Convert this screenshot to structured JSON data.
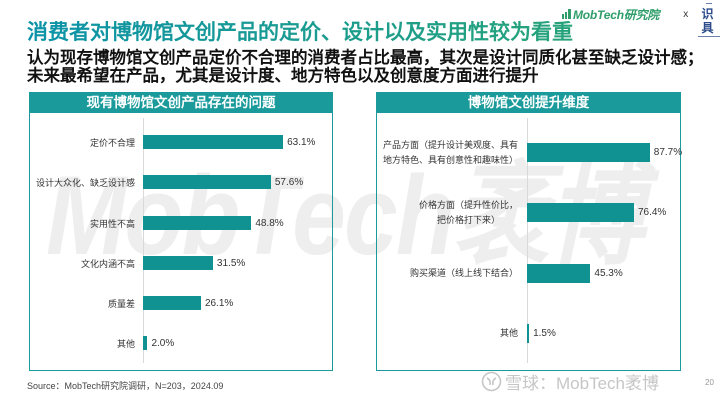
{
  "header": {
    "title": "消费者对博物馆文创产品的定价、设计以及实用性较为看重",
    "subtitle_lines": [
      "认为现存博物馆文创产品定价不合理的消费者占比最高，其次是设计同质化甚至缺乏设计感；",
      "未来最希望在产品，尤其是设计度、地方特色以及创意度方面进行提升"
    ]
  },
  "logo": {
    "brand": "MobTech研究院",
    "separator": "x",
    "partner": "识具"
  },
  "colors": {
    "accent": "#1b9a9c",
    "bar": "#0f9291",
    "title_gradient_start": "#0c93a8",
    "title_gradient_end": "#27a37a",
    "watermark": "#eeeeee"
  },
  "background_watermark": "MobTech袤博",
  "panels": [
    {
      "title": "现有博物馆文创产品存在的问题"
    },
    {
      "title": "博物馆文创提升维度"
    }
  ],
  "chart_data": [
    {
      "type": "bar",
      "orientation": "horizontal",
      "title": "现有博物馆文创产品存在的问题",
      "categories": [
        "定价不合理",
        "设计大众化、缺乏设计感",
        "实用性不高",
        "文化内涵不高",
        "质量差",
        "其他"
      ],
      "values": [
        63.1,
        57.6,
        48.8,
        31.5,
        26.1,
        2.0
      ],
      "value_labels": [
        "63.1%",
        "57.6%",
        "48.8%",
        "31.5%",
        "26.1%",
        "2.0%"
      ],
      "unit": "%",
      "xlabel": "",
      "ylabel": "",
      "grid": false,
      "legend": null
    },
    {
      "type": "bar",
      "orientation": "horizontal",
      "title": "博物馆文创提升维度",
      "categories": [
        "产品方面（提升设计美观度、具有地方特色、具有创意性和趣味性）",
        "价格方面（提升性价比，把价格打下来）",
        "购买渠道（线上线下结合）",
        "其他"
      ],
      "label_lines": [
        [
          "产品方面（提升设计美观度、具有",
          "地方特色、具有创意性和趣味性）"
        ],
        [
          "价格方面（提升性价比，",
          "把价格打下来）"
        ],
        [
          "购买渠道（线上线下结合）"
        ],
        [
          "其他"
        ]
      ],
      "values": [
        87.7,
        76.4,
        45.3,
        1.5
      ],
      "value_labels": [
        "87.7%",
        "76.4%",
        "45.3%",
        "1.5%"
      ],
      "unit": "%",
      "xlabel": "",
      "ylabel": "",
      "grid": false,
      "legend": null
    }
  ],
  "footer": {
    "source": "Source：MobTech研究院调研，N=203，2024.09",
    "watermark": "雪球：MobTech袤博",
    "page_number": "20"
  }
}
